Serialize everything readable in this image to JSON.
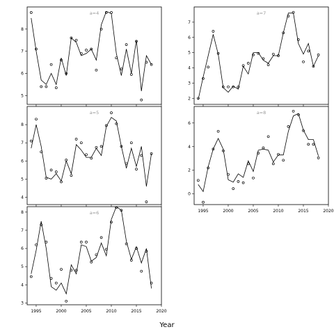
{
  "xlabel": "Year",
  "chart_data": [
    {
      "type": "line",
      "panel_label": "a=4",
      "x": [
        1994,
        1995,
        1996,
        1997,
        1998,
        1999,
        2000,
        2001,
        2002,
        2003,
        2004,
        2005,
        2006,
        2007,
        2008,
        2009,
        2010,
        2011,
        2012,
        2013,
        2014,
        2015,
        2016,
        2017,
        2018
      ],
      "line": [
        8.5,
        7.0,
        5.7,
        5.5,
        6.0,
        5.5,
        6.7,
        5.9,
        7.6,
        7.4,
        6.8,
        6.9,
        7.1,
        6.6,
        8.2,
        8.8,
        8.7,
        6.9,
        5.9,
        7.1,
        6.0,
        7.5,
        5.2,
        6.8,
        6.4
      ],
      "points": [
        8.75,
        7.1,
        5.4,
        5.4,
        6.4,
        5.35,
        6.6,
        6.0,
        7.6,
        7.5,
        6.9,
        7.05,
        7.1,
        6.15,
        8.0,
        8.75,
        8.75,
        6.7,
        6.2,
        7.3,
        5.95,
        7.45,
        4.8,
        6.5,
        6.4
      ],
      "xlim": [
        1993.2,
        2020
      ],
      "ylim": [
        4.6,
        9.0
      ],
      "yticks": [
        5,
        6,
        7,
        8
      ]
    },
    {
      "type": "line",
      "panel_label": "a=7",
      "x": [
        1994,
        1995,
        1996,
        1997,
        1998,
        1999,
        2000,
        2001,
        2002,
        2003,
        2004,
        2005,
        2006,
        2007,
        2008,
        2009,
        2010,
        2011,
        2012,
        2013,
        2014,
        2015,
        2016,
        2017,
        2018
      ],
      "line": [
        1.9,
        3.4,
        4.8,
        6.2,
        4.9,
        2.7,
        2.4,
        2.8,
        2.6,
        4.1,
        3.6,
        5.0,
        5.0,
        4.5,
        4.3,
        4.8,
        4.8,
        6.3,
        7.6,
        7.6,
        5.6,
        4.9,
        5.6,
        4.1,
        4.8
      ],
      "points": [
        2.0,
        3.3,
        4.05,
        6.4,
        4.95,
        2.75,
        2.75,
        2.75,
        2.75,
        4.15,
        4.3,
        4.85,
        4.95,
        4.6,
        4.2,
        4.9,
        4.8,
        6.3,
        7.4,
        7.65,
        5.85,
        4.4,
        5.1,
        4.1,
        4.85
      ],
      "xlim": [
        1993.2,
        2020
      ],
      "ylim": [
        1.6,
        8.0
      ],
      "yticks": [
        2,
        3,
        4,
        5,
        6,
        7
      ]
    },
    {
      "type": "line",
      "panel_label": "a=5",
      "x": [
        1994,
        1995,
        1996,
        1997,
        1998,
        1999,
        2000,
        2001,
        2002,
        2003,
        2004,
        2005,
        2006,
        2007,
        2008,
        2009,
        2010,
        2011,
        2012,
        2013,
        2014,
        2015,
        2016,
        2017,
        2018
      ],
      "line": [
        6.7,
        8.0,
        6.8,
        5.1,
        5.0,
        5.3,
        4.9,
        6.0,
        5.3,
        6.9,
        6.6,
        6.2,
        6.2,
        6.7,
        6.3,
        7.9,
        8.4,
        8.2,
        6.8,
        5.6,
        6.7,
        5.7,
        6.8,
        4.6,
        6.4
      ],
      "points": [
        7.1,
        8.3,
        6.5,
        5.05,
        5.5,
        5.4,
        4.85,
        6.05,
        5.2,
        7.2,
        7.0,
        6.35,
        6.15,
        6.75,
        6.8,
        7.95,
        8.65,
        8.05,
        6.8,
        5.85,
        7.0,
        5.55,
        6.3,
        3.75,
        6.4
      ],
      "xlim": [
        1993.2,
        2020
      ],
      "ylim": [
        3.6,
        9.0
      ],
      "yticks": [
        4,
        5,
        6,
        7,
        8
      ]
    },
    {
      "type": "line",
      "panel_label": "a=8",
      "x": [
        1994,
        1995,
        1996,
        1997,
        1998,
        1999,
        2000,
        2001,
        2002,
        2003,
        2004,
        2005,
        2006,
        2007,
        2008,
        2009,
        2010,
        2011,
        2012,
        2013,
        2014,
        2015,
        2016,
        2017,
        2018
      ],
      "line": [
        0.8,
        0.2,
        2.3,
        3.8,
        4.7,
        3.8,
        1.2,
        1.0,
        1.7,
        1.4,
        2.8,
        1.9,
        3.7,
        3.8,
        3.7,
        2.7,
        3.3,
        3.3,
        5.3,
        6.6,
        6.8,
        5.4,
        4.6,
        4.6,
        3.2
      ],
      "points": [
        1.15,
        -0.7,
        2.2,
        3.8,
        5.3,
        3.65,
        1.65,
        0.45,
        1.05,
        0.95,
        2.55,
        1.35,
        3.45,
        3.9,
        4.85,
        2.55,
        3.35,
        2.85,
        5.7,
        7.0,
        6.7,
        5.35,
        4.2,
        4.2,
        3.05
      ],
      "xlim": [
        1993.2,
        2020
      ],
      "ylim": [
        -0.9,
        7.4
      ],
      "yticks": [
        0,
        2,
        4,
        6
      ]
    },
    {
      "type": "line",
      "panel_label": "a=6",
      "x": [
        1994,
        1995,
        1996,
        1997,
        1998,
        1999,
        2000,
        2001,
        2002,
        2003,
        2004,
        2005,
        2006,
        2007,
        2008,
        2009,
        2010,
        2011,
        2012,
        2013,
        2014,
        2015,
        2016,
        2017,
        2018
      ],
      "line": [
        4.6,
        5.9,
        7.5,
        6.0,
        3.9,
        3.7,
        4.1,
        3.5,
        5.1,
        4.6,
        6.2,
        6.1,
        5.3,
        5.5,
        6.3,
        5.6,
        7.6,
        8.3,
        8.1,
        6.4,
        5.4,
        6.1,
        5.2,
        6.0,
        3.8
      ],
      "points": [
        4.45,
        6.2,
        7.3,
        6.35,
        4.35,
        4.1,
        4.85,
        3.1,
        4.8,
        4.8,
        6.35,
        6.35,
        5.25,
        5.65,
        6.6,
        5.95,
        7.45,
        8.25,
        8.1,
        6.25,
        5.35,
        6.0,
        4.75,
        5.85,
        4.1
      ],
      "xlim": [
        1993.2,
        2020
      ],
      "ylim": [
        2.9,
        8.3
      ],
      "yticks": [
        3,
        4,
        5,
        6,
        7,
        8
      ]
    }
  ],
  "x_axis": {
    "ticks": [
      1995,
      2000,
      2005,
      2010,
      2015,
      2020
    ],
    "tick_labels": [
      "1995",
      "2000",
      "2005",
      "2010",
      "2015",
      "2020"
    ]
  },
  "colors": {
    "line": "#000000",
    "axis": "#000000",
    "panel_label": "#9a9a9a"
  }
}
